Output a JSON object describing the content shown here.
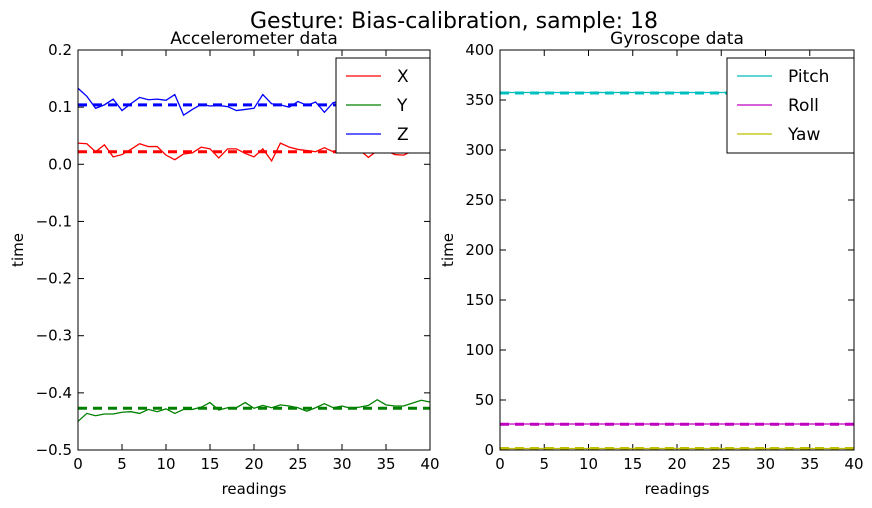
{
  "figure": {
    "suptitle": "Gesture: Bias-calibration, sample: 18"
  },
  "chart_data": [
    {
      "type": "line",
      "title": "Accelerometer data",
      "xlabel": "readings",
      "ylabel": "time",
      "xlim": [
        0,
        40
      ],
      "ylim": [
        -0.5,
        0.2
      ],
      "x_ticks": [
        "0",
        "5",
        "10",
        "15",
        "20",
        "25",
        "30",
        "35",
        "40"
      ],
      "y_ticks": [
        "0.2",
        "0.1",
        "0.0",
        "−0.1",
        "−0.2",
        "−0.3",
        "−0.4",
        "−0.5"
      ],
      "grid": false,
      "legend": "top-right",
      "x": [
        0,
        1,
        2,
        3,
        4,
        5,
        6,
        7,
        8,
        9,
        10,
        11,
        12,
        13,
        14,
        15,
        16,
        17,
        18,
        19,
        20,
        21,
        22,
        23,
        24,
        25,
        26,
        27,
        28,
        29,
        30,
        31,
        32,
        33,
        34,
        35,
        36,
        37,
        38,
        39,
        40
      ],
      "series": [
        {
          "name": "X",
          "color": "#ff0000",
          "values": [
            0.037,
            0.036,
            0.022,
            0.034,
            0.013,
            0.017,
            0.026,
            0.036,
            0.031,
            0.031,
            0.016,
            0.008,
            0.018,
            0.02,
            0.03,
            0.027,
            0.011,
            0.027,
            0.027,
            0.019,
            0.013,
            0.027,
            0.006,
            0.037,
            0.03,
            0.026,
            0.024,
            0.022,
            0.029,
            0.022,
            0.025,
            0.02,
            0.025,
            0.012,
            0.024,
            0.024,
            0.017,
            0.016,
            0.023,
            0.022,
            0.025
          ],
          "mean": 0.022
        },
        {
          "name": "Y",
          "color": "#008000",
          "values": [
            -0.45,
            -0.436,
            -0.44,
            -0.437,
            -0.437,
            -0.434,
            -0.433,
            -0.436,
            -0.429,
            -0.433,
            -0.428,
            -0.436,
            -0.429,
            -0.429,
            -0.425,
            -0.417,
            -0.43,
            -0.426,
            -0.426,
            -0.417,
            -0.427,
            -0.422,
            -0.426,
            -0.421,
            -0.423,
            -0.426,
            -0.432,
            -0.426,
            -0.419,
            -0.426,
            -0.423,
            -0.427,
            -0.425,
            -0.422,
            -0.412,
            -0.421,
            -0.423,
            -0.423,
            -0.418,
            -0.413,
            -0.416
          ],
          "mean": -0.427
        },
        {
          "name": "Z",
          "color": "#0000ff",
          "values": [
            0.133,
            0.119,
            0.098,
            0.104,
            0.114,
            0.094,
            0.106,
            0.117,
            0.113,
            0.114,
            0.112,
            0.122,
            0.086,
            0.096,
            0.105,
            0.102,
            0.103,
            0.101,
            0.094,
            0.096,
            0.098,
            0.122,
            0.106,
            0.104,
            0.1,
            0.11,
            0.103,
            0.109,
            0.091,
            0.108,
            0.111,
            0.105,
            0.105,
            0.104,
            0.112,
            0.109,
            0.108,
            0.108,
            0.1,
            0.096,
            0.102
          ],
          "mean": 0.104
        }
      ]
    },
    {
      "type": "line",
      "title": "Gyroscope data",
      "xlabel": "readings",
      "ylabel": "time",
      "xlim": [
        0,
        40
      ],
      "ylim": [
        0,
        400
      ],
      "x_ticks": [
        "0",
        "5",
        "10",
        "15",
        "20",
        "25",
        "30",
        "35",
        "40"
      ],
      "y_ticks": [
        "400",
        "350",
        "300",
        "250",
        "200",
        "150",
        "100",
        "50",
        "0"
      ],
      "grid": false,
      "legend": "top-right",
      "x": [
        0,
        40
      ],
      "series": [
        {
          "name": "Pitch",
          "color": "#00bfbf",
          "values": [
            357.5,
            357.5
          ],
          "mean": 357.0
        },
        {
          "name": "Roll",
          "color": "#bf00bf",
          "values": [
            26.0,
            26.0
          ],
          "mean": 25.8
        },
        {
          "name": "Yaw",
          "color": "#bfbf00",
          "values": [
            1.5,
            1.5
          ],
          "mean": 1.5
        }
      ]
    }
  ]
}
